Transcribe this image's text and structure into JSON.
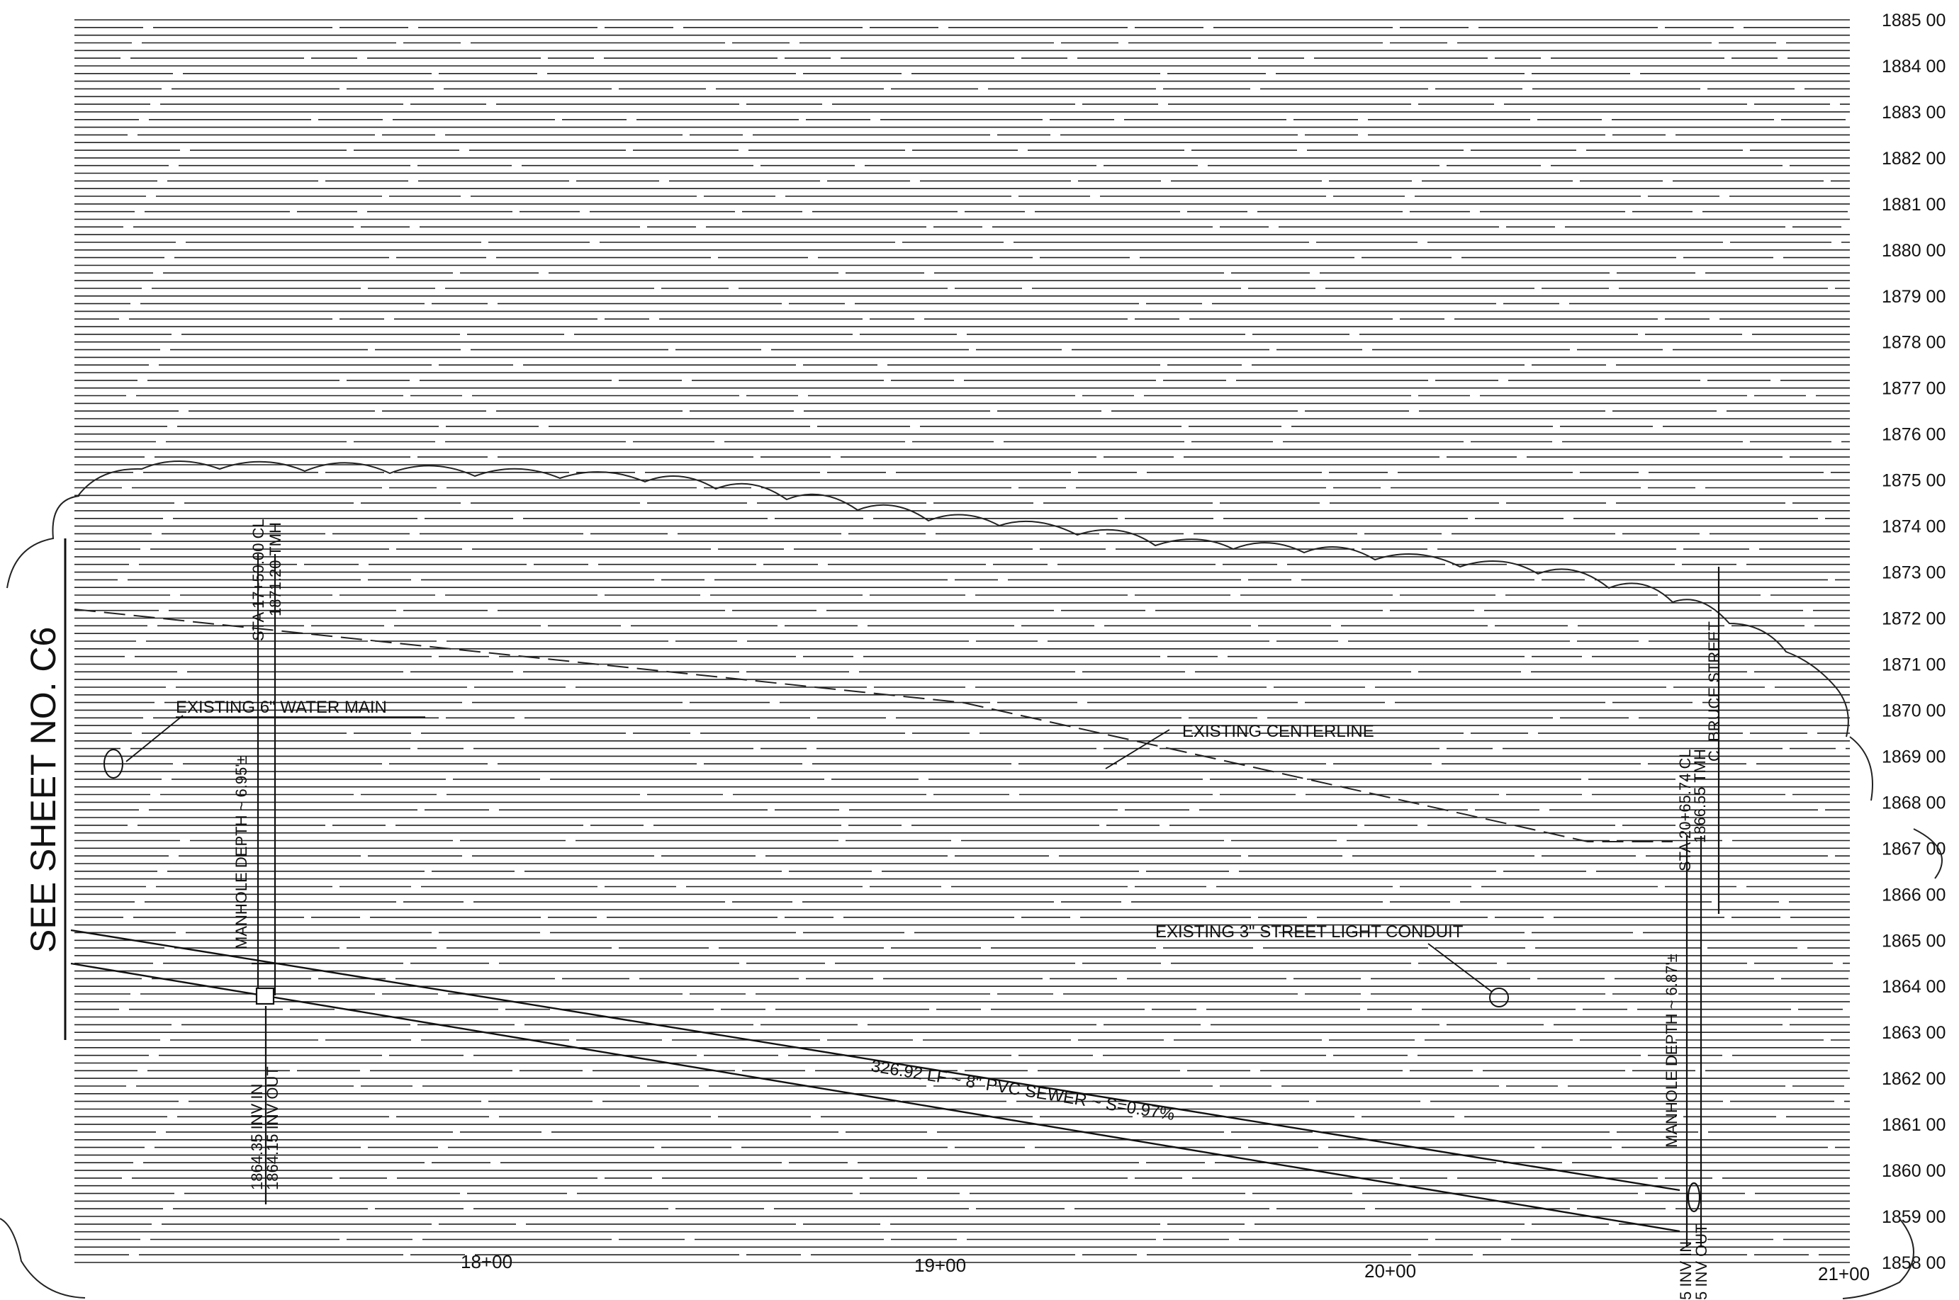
{
  "sheet_ref": "SEE SHEET NO. C6",
  "elevations": [
    "1885 00",
    "1884 00",
    "1883 00",
    "1882 00",
    "1881 00",
    "1880 00",
    "1879 00",
    "1878 00",
    "1877 00",
    "1876 00",
    "1875 00",
    "1874 00",
    "1873 00",
    "1872 00",
    "1871 00",
    "1870 00",
    "1869 00",
    "1868 00",
    "1867 00",
    "1866 00",
    "1865 00",
    "1864 00",
    "1863 00",
    "1862 00",
    "1861 00",
    "1860 00",
    "1859 00",
    "1858 00"
  ],
  "stations": [
    "18+00",
    "19+00",
    "20+00",
    "21+00"
  ],
  "manhole_left": {
    "sta": "STA 17+50.00 CL",
    "rim": "1871.20 TMH",
    "depth": "MANHOLE DEPTH ~ 6.95'±",
    "inv_in": "1864.35 INV IN",
    "inv_out": "1864.15 INV OUT"
  },
  "manhole_right": {
    "sta": "STA 20+65.74 CL",
    "rim": "1866.55 TMH",
    "depth": "MANHOLE DEPTH ~ 6.87'±",
    "inv_in": "5 INV IN",
    "inv_out": "5 INV OUT"
  },
  "labels": {
    "water_main": "EXISTING 6\" WATER MAIN",
    "centerline": "EXISTING CENTERLINE",
    "street_light": "EXISTING 3\" STREET LIGHT CONDUIT",
    "sewer": "326.92 LF ~ 8\" PVC SEWER ~ S=0.97%",
    "street": "C. BRUCE STREET"
  }
}
